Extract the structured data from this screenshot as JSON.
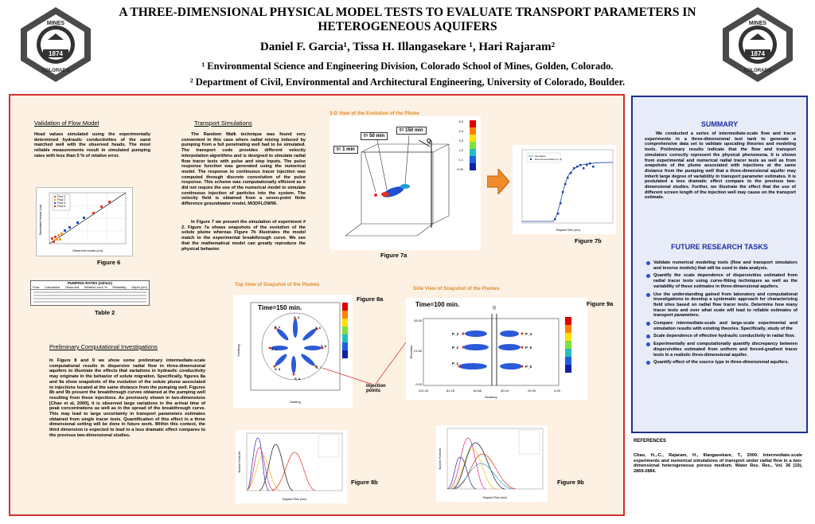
{
  "header": {
    "title": "A THREE-DIMENSIONAL PHYSICAL MODEL TESTS TO EVALUATE TRANSPORT PARAMETERS IN HETEROGENEOUS AQUIFERS",
    "authors": "Daniel F. Garcia¹, Tissa H. Illangasekare ¹, Hari Rajaram²",
    "aff1": "¹ Environmental Science and Engineering Division, Colorado School of Mines, Golden, Colorado.",
    "aff2": "² Department of Civil, Environmental and Architectural Engineering, University of Colorado, Boulder.",
    "seal_text": "SCHOOL OF MINES",
    "seal_year": "1874",
    "seal_state": "COLORADO"
  },
  "validation": {
    "heading": "Validation of Flow Model",
    "body": "Head values simulated using the experimentally determined hydraulic conductivities of the sand matched well with the observed heads. The most reliable measurements result in simulated pumping rates with less than 5 % of relative error.",
    "fig_caption": "Figure 6",
    "fig_xlabel": "Observed heads (cm)",
    "fig_ylabel": "Simulated heads (cm)",
    "legend": [
      "Flow 1",
      "Flow 2",
      "Flow 3",
      "Flow 4"
    ],
    "table_caption": "Table 2",
    "table_title": "PUMPING RATES (ml/min)",
    "table_headers": [
      "Flow",
      "Calculated",
      "Observed",
      "Relative error %",
      "Reliability",
      "Depth (cm)"
    ]
  },
  "transport": {
    "heading": "Transport Simulations",
    "body1": "The Random Walk technique was found very convenient in this case where radial mixing induced by pumping from a full penetrating well had to be simulated. The transport code provides different velocity interpolation algorithms and is designed to simulate radial flow tracer tests with pulse and step inputs. The pulse response function was generated using the numerical model. The response to continuous tracer injection was computed through discrete convolution of the pulse response. This scheme was computationally efficient as it did not require the use of the numerical model to simulate continuous injection of particles into the system. The velocity field is obtained from a seven-point finite difference groundwater model, MODFLOW96.",
    "body2": "In Figure 7 we present the simulation of experiment # 2. Figure 7a shows snapshots of the evolution of the solute plume whereas Figure 7b illustrates the model match to the experimental breakthrough curve. We see that the mathematical model can greatly reproduce the physical behavior."
  },
  "fig7": {
    "panel_title": "3-D View of the Evolution of the Plume",
    "t1": "t= 1 min",
    "t2": "t= 50 min",
    "t3": "t= 150 min",
    "q": "Q",
    "caption_a": "Figure 7a",
    "caption_b": "Figure 7b",
    "b_legend": [
      "Simulation",
      "Experimental Data (ex. #)"
    ],
    "b_xlabel": "Elapsed Time (min)",
    "colorbar": [
      "5.5",
      "4.4",
      "3.3",
      "2.2",
      "1.1",
      "0.00"
    ]
  },
  "prelim": {
    "heading": "Preliminary Computational Investigations",
    "body": "In Figure 8 and 9 we show some preliminary intermediate-scale computational results in dispersive radial flow in three-dimensional aquifers to illustrate the effects that variations in hydraulic conductivity may originate in the behavior of solute migration. Specifically, figures 8a and 9a show snapshots of the evolution of the solute plume associated to injections located at the same distance from the pumping well. Figures 8b and 9b present the breakthrough curves obtained at the pumping well resulting from these injections. As previously shown in two-dimensions [Chao et al, 2000], it is observed large variations in the arrival time of peak concentrations as well as in the spread of the breakthrough curve. This may lead to large uncertainty in transport parameters estimates obtained from single tracer tests. Quantification of this effect in a three dimensional setting will be done in future work. Within this context, the third dimension is expected to lead to a less dramatic effect compares to the previous two-dimensional studies."
  },
  "fig8": {
    "panel_title": "Top View of Snapshot of the Plumes",
    "time": "Time=150 min.",
    "caption_a": "Figure 8a",
    "caption_b": "Figure 8b",
    "injection": "Injection points",
    "xlabel": "Easting",
    "ylabel": "Northing",
    "b_xlabel": "Elapsed Time (min)",
    "b_ylabel": "Number Particles",
    "labels": [
      "S_1",
      "S_2",
      "S_3",
      "S_4",
      "S_5",
      "S_6",
      "S_7",
      "S_8"
    ]
  },
  "fig9": {
    "panel_title": "Side View of Snapshot of the Plumes",
    "time": "Time=100 min.",
    "caption_a": "Figure 9a",
    "caption_b": "Figure 9b",
    "q": "Q",
    "xlabel": "Northing",
    "ylabel": "Elevation",
    "xticks": [
      "101.00",
      "81.29",
      "60.86",
      "40.04",
      "20.00",
      "0.00"
    ],
    "yticks": [
      "43.00",
      "21.50",
      "0.00"
    ],
    "labels_left": [
      "P_1",
      "P_2",
      "P_3"
    ],
    "labels_right": [
      "P_4",
      "P_5",
      "P_6"
    ],
    "b_xlabel": "Elapsed Time (min)",
    "b_ylabel": "Number Particles"
  },
  "summary": {
    "heading": "SUMMARY",
    "body": "We conducted a series of intermediate-scale flow and tracer experiments in a three-dimensional test tank to generate a comprehensive data set to validate upscaling theories and modeling tools. Preliminary results indicate that the flow and transport simulators correctly represent the physical phenomena. It is shown from experimental and numerical radial tracer tests as well as from snapshots of the plume associated with injections at the same distance from the pumping well that a three-dimensional aquifer may inherit large degree of variability in transport parameter estimates. It is postulated a less dramatic effect compare to the previous two-dimensional studies. Further, we illustrate the effect that the use of different screen length of the injection well may cause on the transport estimate."
  },
  "future": {
    "heading": "FUTURE RESEARCH TASKS",
    "items": [
      "Validate numerical modeling tools (flow and transport simulators and inverse models) that will be used in data analysis.",
      "Quantify the scale dependence of dispersivities estimated from radial tracer tests using curve-fitting techniques as well as the variability of these estimates in three-dimensional aquifers.",
      "Use the understanding gained from laboratory and computational investigations to develop a systematic approach for characterizing field sites based on radial flow tracer tests. Determine how many tracer tests and over what scale will lead to reliable estimates of transport parameters.",
      "Compare intermediate-scale and large-scale experimental and simulation results with existing theories. Specifically, study of the",
      "Scale dependence of effective hydraulic conductivity in radial flow.",
      "Experimentally and computationally quantify discrepancy between dispersivities estimated from uniform and forced-gradient tracer tests in a realistic three-dimensional aquifer.",
      "Quantify effect of the source type in three-dimensional aquifers."
    ]
  },
  "references": {
    "heading": "REFERENCES",
    "body": "Chao, H.,-C., Rajaram, H., Illangasekare, T., 2000. Intermediate-scale experiments and numerical simulations of transport under radial flow in a two-dimensional heterogeneous porous medium. Water Res. Res., Vol. 36 (10), 2869-2884."
  },
  "colors": {
    "frame": "#d32f2f",
    "frame_bg": "#fdf1e3",
    "side_border": "#1e2f8f",
    "heading_blue": "#1a2fa0",
    "panel_title": "#e08a2c"
  }
}
